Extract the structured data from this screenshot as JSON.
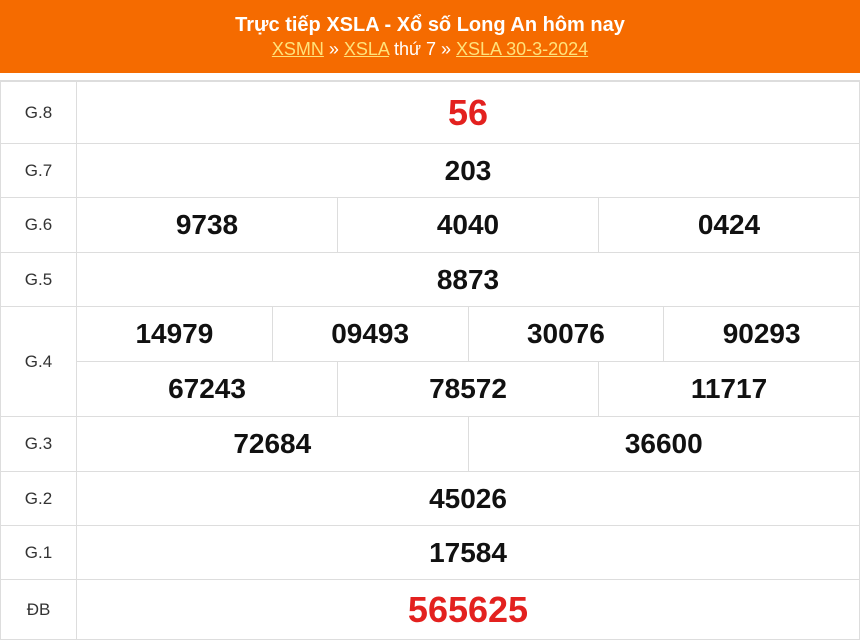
{
  "header": {
    "title": "Trực tiếp XSLA - Xổ số Long An hôm nay",
    "crumb1": "XSMN",
    "sep1": " » ",
    "crumb2": "XSLA",
    "crumb2_suffix": " thứ 7",
    "sep2": " » ",
    "crumb3": "XSLA 30-3-2024"
  },
  "prizes": [
    {
      "label": "G.8",
      "numbers": [
        "56"
      ]
    },
    {
      "label": "G.7",
      "numbers": [
        "203"
      ]
    },
    {
      "label": "G.6",
      "numbers": [
        "9738",
        "4040",
        "0424"
      ]
    },
    {
      "label": "G.5",
      "numbers": [
        "8873"
      ]
    },
    {
      "label": "G.4",
      "numbers": [
        "14979",
        "09493",
        "30076",
        "90293",
        "67243",
        "78572",
        "11717"
      ]
    },
    {
      "label": "G.3",
      "numbers": [
        "72684",
        "36600"
      ]
    },
    {
      "label": "G.2",
      "numbers": [
        "45026"
      ]
    },
    {
      "label": "G.1",
      "numbers": [
        "17584"
      ]
    },
    {
      "label": "ĐB",
      "numbers": [
        "565625"
      ]
    }
  ],
  "colors": {
    "header": "#f56b00",
    "highlight": "#e3211f",
    "link": "#ffe27a"
  }
}
